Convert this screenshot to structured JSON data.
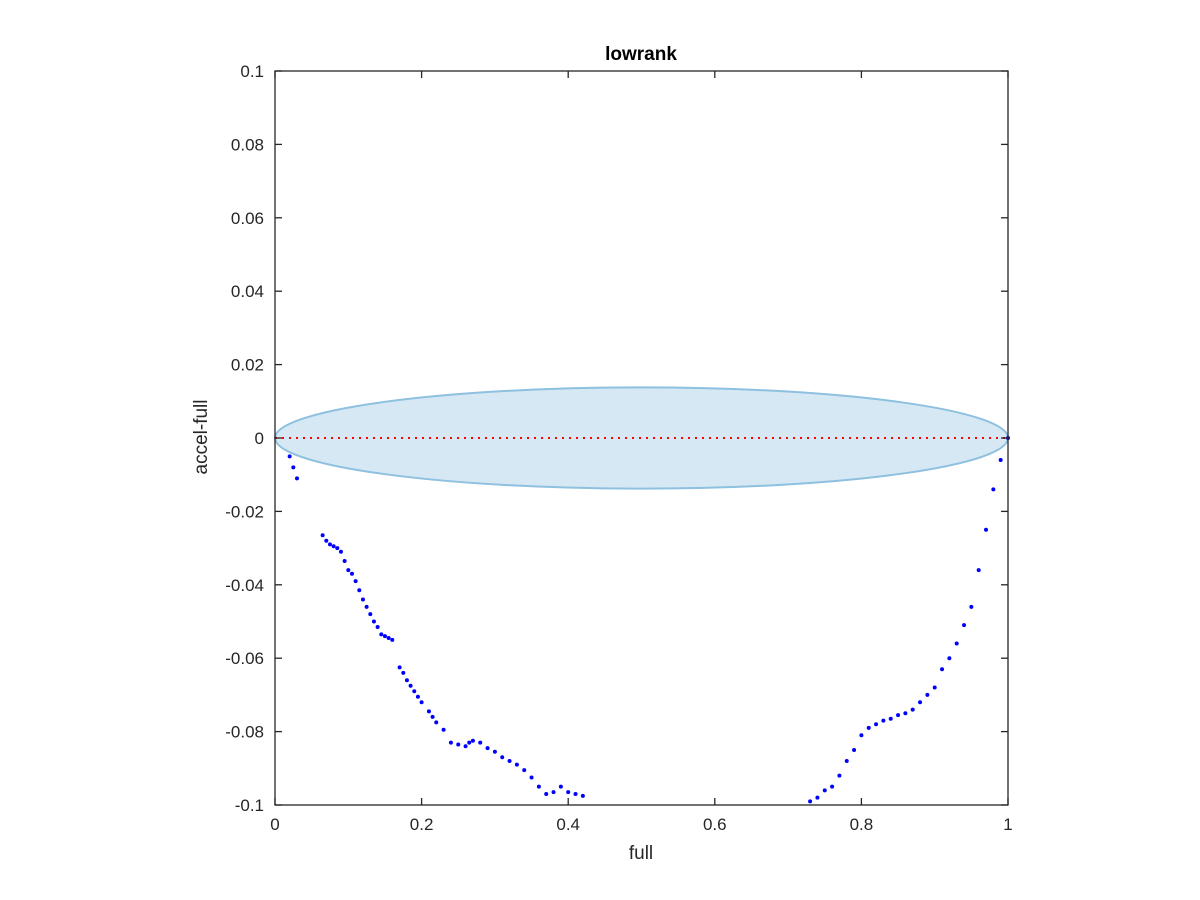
{
  "chart_data": {
    "type": "scatter",
    "title": "lowrank",
    "xlabel": "full",
    "ylabel": "accel-full",
    "xlim": [
      0,
      1
    ],
    "ylim": [
      -0.1,
      0.1
    ],
    "xticks": [
      0,
      0.2,
      0.4,
      0.6,
      0.8,
      1
    ],
    "xtick_labels": [
      "0",
      "0.2",
      "0.4",
      "0.6",
      "0.8",
      "1"
    ],
    "yticks": [
      -0.1,
      -0.08,
      -0.06,
      -0.04,
      -0.02,
      0,
      0.02,
      0.04,
      0.06,
      0.08,
      0.1
    ],
    "ytick_labels": [
      "-0.1",
      "-0.08",
      "-0.06",
      "-0.04",
      "-0.02",
      "0",
      "0.02",
      "0.04",
      "0.06",
      "0.08",
      "0.1"
    ],
    "grid": false,
    "colors": {
      "points": "#0000ff",
      "reference_line": "#ff0000",
      "ellipse_fill": "#d6e8f4",
      "ellipse_edge": "#8ec0df",
      "axes": "#262626"
    },
    "reference_line": {
      "y": 0,
      "style": "dotted"
    },
    "ellipse": {
      "center": [
        0.5,
        0
      ],
      "semi_axis_x": 0.5,
      "semi_axis_y": 0.0138
    },
    "series": [
      {
        "marker": "dot",
        "x": [
          0.02,
          0.025,
          0.03,
          0.065,
          0.07,
          0.075,
          0.08,
          0.085,
          0.09,
          0.095,
          0.1,
          0.105,
          0.11,
          0.115,
          0.12,
          0.125,
          0.13,
          0.135,
          0.14,
          0.145,
          0.15,
          0.155,
          0.16,
          0.17,
          0.175,
          0.18,
          0.185,
          0.19,
          0.195,
          0.2,
          0.21,
          0.215,
          0.22,
          0.23,
          0.24,
          0.25,
          0.26,
          0.265,
          0.27,
          0.28,
          0.29,
          0.3,
          0.31,
          0.32,
          0.33,
          0.34,
          0.35,
          0.36,
          0.37,
          0.38,
          0.39,
          0.4,
          0.41,
          0.42,
          0.73,
          0.74,
          0.75,
          0.76,
          0.77,
          0.78,
          0.79,
          0.8,
          0.81,
          0.82,
          0.83,
          0.84,
          0.85,
          0.86,
          0.87,
          0.88,
          0.89,
          0.9,
          0.91,
          0.92,
          0.93,
          0.94,
          0.95,
          0.96,
          0.97,
          0.98,
          0.99,
          1.0
        ],
        "y": [
          -0.005,
          -0.008,
          -0.011,
          -0.0265,
          -0.028,
          -0.029,
          -0.0295,
          -0.03,
          -0.031,
          -0.0335,
          -0.036,
          -0.037,
          -0.039,
          -0.0415,
          -0.044,
          -0.046,
          -0.048,
          -0.05,
          -0.0515,
          -0.0535,
          -0.054,
          -0.0545,
          -0.055,
          -0.0625,
          -0.064,
          -0.066,
          -0.0675,
          -0.069,
          -0.0705,
          -0.072,
          -0.0745,
          -0.076,
          -0.0775,
          -0.0795,
          -0.083,
          -0.0835,
          -0.084,
          -0.083,
          -0.0825,
          -0.083,
          -0.0845,
          -0.0855,
          -0.087,
          -0.088,
          -0.089,
          -0.0905,
          -0.0925,
          -0.095,
          -0.097,
          -0.0965,
          -0.095,
          -0.0965,
          -0.097,
          -0.0975,
          -0.099,
          -0.098,
          -0.096,
          -0.095,
          -0.092,
          -0.088,
          -0.085,
          -0.081,
          -0.079,
          -0.078,
          -0.077,
          -0.0765,
          -0.0755,
          -0.075,
          -0.074,
          -0.072,
          -0.07,
          -0.068,
          -0.063,
          -0.06,
          -0.056,
          -0.051,
          -0.046,
          -0.036,
          -0.025,
          -0.014,
          -0.006,
          0.0
        ]
      }
    ]
  }
}
